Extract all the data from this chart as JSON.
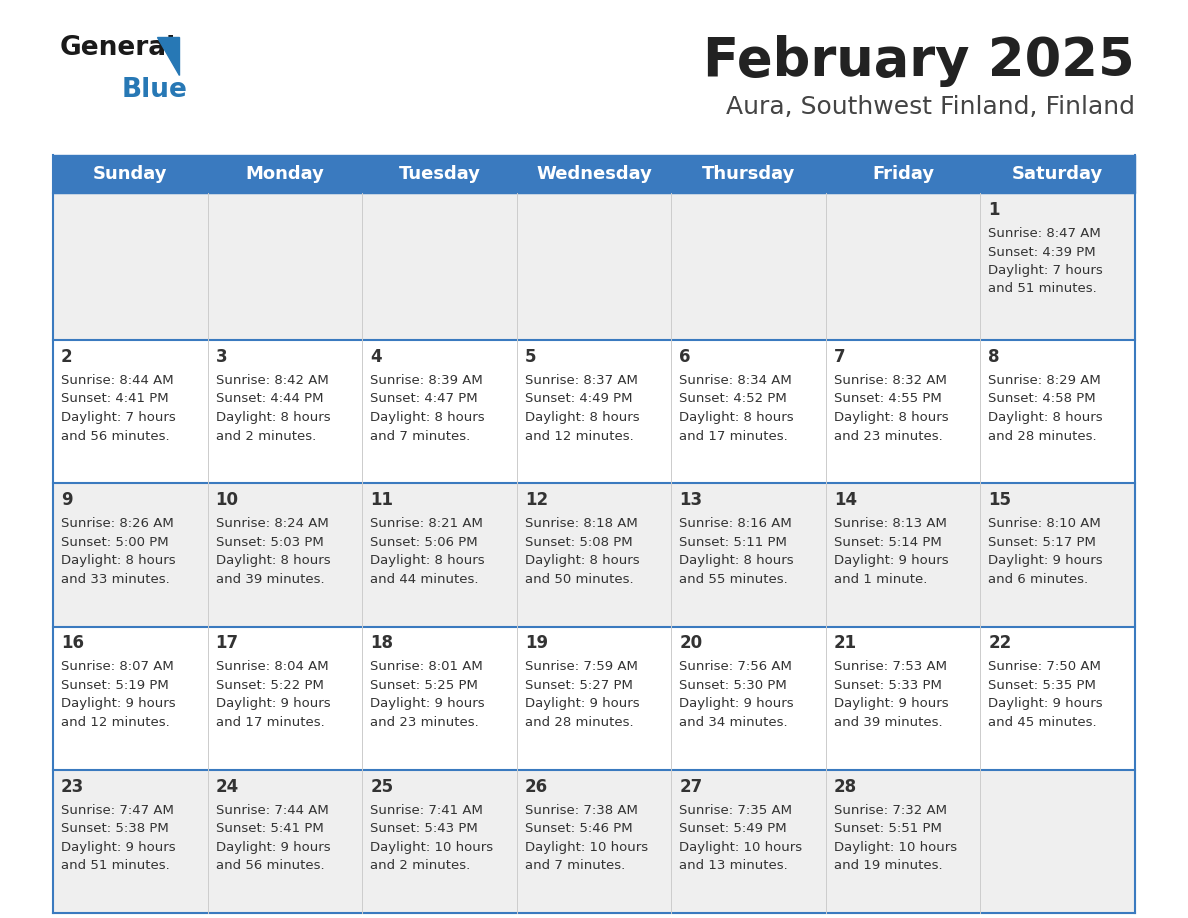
{
  "title": "February 2025",
  "subtitle": "Aura, Southwest Finland, Finland",
  "header_color": "#3a7abf",
  "header_text_color": "#ffffff",
  "bg_color": "#ffffff",
  "row_alt_color": "#efefef",
  "border_color": "#3a7abf",
  "day_headers": [
    "Sunday",
    "Monday",
    "Tuesday",
    "Wednesday",
    "Thursday",
    "Friday",
    "Saturday"
  ],
  "title_color": "#222222",
  "subtitle_color": "#444444",
  "day_num_color": "#333333",
  "info_color": "#333333",
  "logo_blue_color": "#2778b5",
  "logo_dark_color": "#1a1a1a",
  "weeks": [
    [
      {
        "day": null,
        "info": null
      },
      {
        "day": null,
        "info": null
      },
      {
        "day": null,
        "info": null
      },
      {
        "day": null,
        "info": null
      },
      {
        "day": null,
        "info": null
      },
      {
        "day": null,
        "info": null
      },
      {
        "day": 1,
        "info": "Sunrise: 8:47 AM\nSunset: 4:39 PM\nDaylight: 7 hours\nand 51 minutes."
      }
    ],
    [
      {
        "day": 2,
        "info": "Sunrise: 8:44 AM\nSunset: 4:41 PM\nDaylight: 7 hours\nand 56 minutes."
      },
      {
        "day": 3,
        "info": "Sunrise: 8:42 AM\nSunset: 4:44 PM\nDaylight: 8 hours\nand 2 minutes."
      },
      {
        "day": 4,
        "info": "Sunrise: 8:39 AM\nSunset: 4:47 PM\nDaylight: 8 hours\nand 7 minutes."
      },
      {
        "day": 5,
        "info": "Sunrise: 8:37 AM\nSunset: 4:49 PM\nDaylight: 8 hours\nand 12 minutes."
      },
      {
        "day": 6,
        "info": "Sunrise: 8:34 AM\nSunset: 4:52 PM\nDaylight: 8 hours\nand 17 minutes."
      },
      {
        "day": 7,
        "info": "Sunrise: 8:32 AM\nSunset: 4:55 PM\nDaylight: 8 hours\nand 23 minutes."
      },
      {
        "day": 8,
        "info": "Sunrise: 8:29 AM\nSunset: 4:58 PM\nDaylight: 8 hours\nand 28 minutes."
      }
    ],
    [
      {
        "day": 9,
        "info": "Sunrise: 8:26 AM\nSunset: 5:00 PM\nDaylight: 8 hours\nand 33 minutes."
      },
      {
        "day": 10,
        "info": "Sunrise: 8:24 AM\nSunset: 5:03 PM\nDaylight: 8 hours\nand 39 minutes."
      },
      {
        "day": 11,
        "info": "Sunrise: 8:21 AM\nSunset: 5:06 PM\nDaylight: 8 hours\nand 44 minutes."
      },
      {
        "day": 12,
        "info": "Sunrise: 8:18 AM\nSunset: 5:08 PM\nDaylight: 8 hours\nand 50 minutes."
      },
      {
        "day": 13,
        "info": "Sunrise: 8:16 AM\nSunset: 5:11 PM\nDaylight: 8 hours\nand 55 minutes."
      },
      {
        "day": 14,
        "info": "Sunrise: 8:13 AM\nSunset: 5:14 PM\nDaylight: 9 hours\nand 1 minute."
      },
      {
        "day": 15,
        "info": "Sunrise: 8:10 AM\nSunset: 5:17 PM\nDaylight: 9 hours\nand 6 minutes."
      }
    ],
    [
      {
        "day": 16,
        "info": "Sunrise: 8:07 AM\nSunset: 5:19 PM\nDaylight: 9 hours\nand 12 minutes."
      },
      {
        "day": 17,
        "info": "Sunrise: 8:04 AM\nSunset: 5:22 PM\nDaylight: 9 hours\nand 17 minutes."
      },
      {
        "day": 18,
        "info": "Sunrise: 8:01 AM\nSunset: 5:25 PM\nDaylight: 9 hours\nand 23 minutes."
      },
      {
        "day": 19,
        "info": "Sunrise: 7:59 AM\nSunset: 5:27 PM\nDaylight: 9 hours\nand 28 minutes."
      },
      {
        "day": 20,
        "info": "Sunrise: 7:56 AM\nSunset: 5:30 PM\nDaylight: 9 hours\nand 34 minutes."
      },
      {
        "day": 21,
        "info": "Sunrise: 7:53 AM\nSunset: 5:33 PM\nDaylight: 9 hours\nand 39 minutes."
      },
      {
        "day": 22,
        "info": "Sunrise: 7:50 AM\nSunset: 5:35 PM\nDaylight: 9 hours\nand 45 minutes."
      }
    ],
    [
      {
        "day": 23,
        "info": "Sunrise: 7:47 AM\nSunset: 5:38 PM\nDaylight: 9 hours\nand 51 minutes."
      },
      {
        "day": 24,
        "info": "Sunrise: 7:44 AM\nSunset: 5:41 PM\nDaylight: 9 hours\nand 56 minutes."
      },
      {
        "day": 25,
        "info": "Sunrise: 7:41 AM\nSunset: 5:43 PM\nDaylight: 10 hours\nand 2 minutes."
      },
      {
        "day": 26,
        "info": "Sunrise: 7:38 AM\nSunset: 5:46 PM\nDaylight: 10 hours\nand 7 minutes."
      },
      {
        "day": 27,
        "info": "Sunrise: 7:35 AM\nSunset: 5:49 PM\nDaylight: 10 hours\nand 13 minutes."
      },
      {
        "day": 28,
        "info": "Sunrise: 7:32 AM\nSunset: 5:51 PM\nDaylight: 10 hours\nand 19 minutes."
      },
      {
        "day": null,
        "info": null
      }
    ]
  ]
}
